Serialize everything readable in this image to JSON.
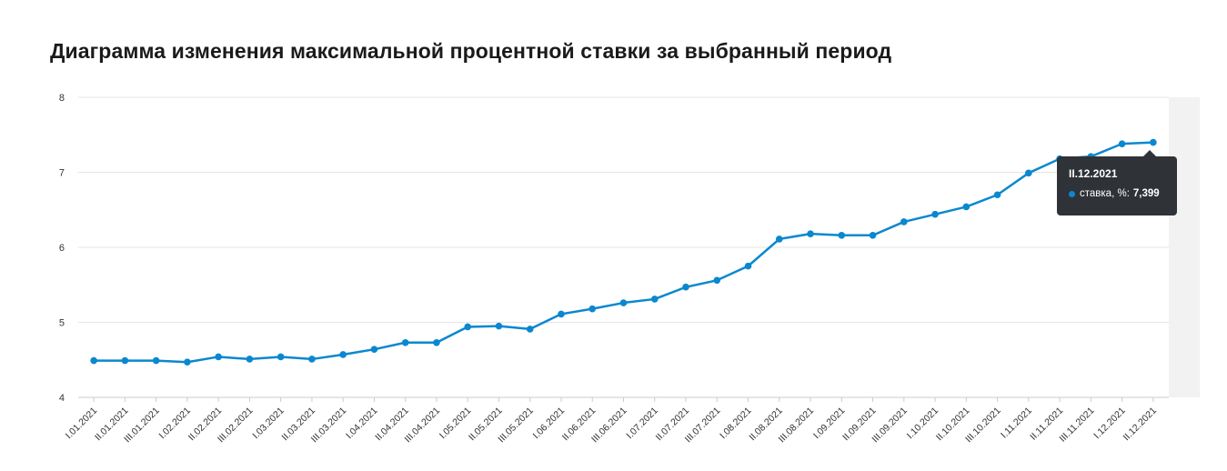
{
  "title": "Диаграмма изменения максимальной процентной ставки за выбранный период",
  "colors": {
    "line": "#0a88cf",
    "grid": "#e5e5e5",
    "highlight": "#f2f2f2",
    "tooltip_bg": "#2f3237"
  },
  "tooltip": {
    "title": "II.12.2021",
    "series_label": "ставка, %:",
    "value": "7,399"
  },
  "chart_data": {
    "type": "line",
    "title": "Диаграмма изменения максимальной процентной ставки за выбранный период",
    "ylim": [
      4,
      8
    ],
    "yticks": [
      4,
      5,
      6,
      7,
      8
    ],
    "grid": true,
    "highlighted_index": 35,
    "categories": [
      "I.01.2021",
      "II.01.2021",
      "III.01.2021",
      "I.02.2021",
      "II.02.2021",
      "III.02.2021",
      "I.03.2021",
      "II.03.2021",
      "III.03.2021",
      "I.04.2021",
      "II.04.2021",
      "III.04.2021",
      "I.05.2021",
      "II.05.2021",
      "III.05.2021",
      "I.06.2021",
      "II.06.2021",
      "III.06.2021",
      "I.07.2021",
      "II.07.2021",
      "III.07.2021",
      "I.08.2021",
      "II.08.2021",
      "III.08.2021",
      "I.09.2021",
      "II.09.2021",
      "III.09.2021",
      "I.10.2021",
      "II.10.2021",
      "III.10.2021",
      "I.11.2021",
      "II.11.2021",
      "III.11.2021",
      "I.12.2021",
      "II.12.2021"
    ],
    "series": [
      {
        "name": "ставка, %",
        "values": [
          4.49,
          4.49,
          4.49,
          4.47,
          4.54,
          4.51,
          4.54,
          4.51,
          4.57,
          4.64,
          4.73,
          4.73,
          4.94,
          4.95,
          4.91,
          5.11,
          5.18,
          5.26,
          5.31,
          5.47,
          5.56,
          5.75,
          6.11,
          6.18,
          6.16,
          6.16,
          6.34,
          6.44,
          6.54,
          6.7,
          6.99,
          7.18,
          7.21,
          7.38,
          7.399
        ]
      }
    ]
  }
}
